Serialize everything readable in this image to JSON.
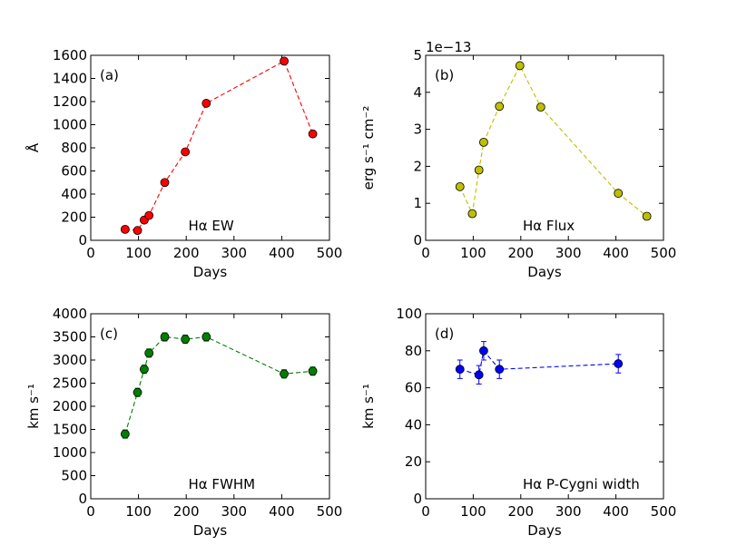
{
  "chart_data": [
    {
      "type": "line",
      "panel_label": "(a)",
      "caption": "Hα EW",
      "xlabel": "Days",
      "ylabel": "Å",
      "xlim": [
        0,
        500
      ],
      "ylim": [
        0,
        1600
      ],
      "xticks": [
        0,
        100,
        200,
        300,
        400,
        500
      ],
      "yticks": [
        0,
        200,
        400,
        600,
        800,
        1000,
        1200,
        1400,
        1600
      ],
      "color": "#ff0000",
      "series": [
        {
          "x": [
            72,
            98,
            112,
            122,
            155,
            198,
            242,
            405,
            465
          ],
          "y": [
            95,
            85,
            175,
            215,
            500,
            765,
            1185,
            1550,
            920
          ]
        }
      ]
    },
    {
      "type": "line",
      "panel_label": "(b)",
      "caption": "Hα Flux",
      "xlabel": "Days",
      "ylabel": "erg s⁻¹ cm⁻²",
      "offset_text": "1e−13",
      "xlim": [
        0,
        500
      ],
      "ylim": [
        0,
        5
      ],
      "xticks": [
        0,
        100,
        200,
        300,
        400,
        500
      ],
      "yticks": [
        0,
        1,
        2,
        3,
        4,
        5
      ],
      "color": "#bfbf00",
      "series": [
        {
          "x": [
            72,
            98,
            112,
            122,
            155,
            198,
            242,
            405,
            465
          ],
          "y": [
            1.45,
            0.72,
            1.9,
            2.65,
            3.62,
            4.72,
            3.6,
            1.27,
            0.65
          ]
        }
      ]
    },
    {
      "type": "line",
      "panel_label": "(c)",
      "caption": "Hα FWHM",
      "xlabel": "Days",
      "ylabel": "km s⁻¹",
      "xlim": [
        0,
        500
      ],
      "ylim": [
        0,
        4000
      ],
      "xticks": [
        0,
        100,
        200,
        300,
        400,
        500
      ],
      "yticks": [
        0,
        500,
        1000,
        1500,
        2000,
        2500,
        3000,
        3500,
        4000
      ],
      "color": "#007f00",
      "series": [
        {
          "x": [
            72,
            98,
            112,
            122,
            155,
            198,
            242,
            405,
            465
          ],
          "y": [
            1400,
            2300,
            2800,
            3150,
            3500,
            3450,
            3500,
            2700,
            2760
          ],
          "err": [
            90,
            90,
            90,
            90,
            90,
            90,
            90,
            90,
            90
          ]
        }
      ]
    },
    {
      "type": "line",
      "panel_label": "(d)",
      "caption": "Hα P-Cygni width",
      "xlabel": "Days",
      "ylabel": "km s⁻¹",
      "xlim": [
        0,
        500
      ],
      "ylim": [
        0,
        100
      ],
      "xticks": [
        0,
        100,
        200,
        300,
        400,
        500
      ],
      "yticks": [
        0,
        20,
        40,
        60,
        80,
        100
      ],
      "color": "#0000ff",
      "series": [
        {
          "x": [
            72,
            112,
            122,
            155,
            405
          ],
          "y": [
            70,
            67,
            80,
            70,
            73
          ],
          "err": [
            5,
            5,
            5,
            5,
            5
          ]
        }
      ]
    }
  ]
}
